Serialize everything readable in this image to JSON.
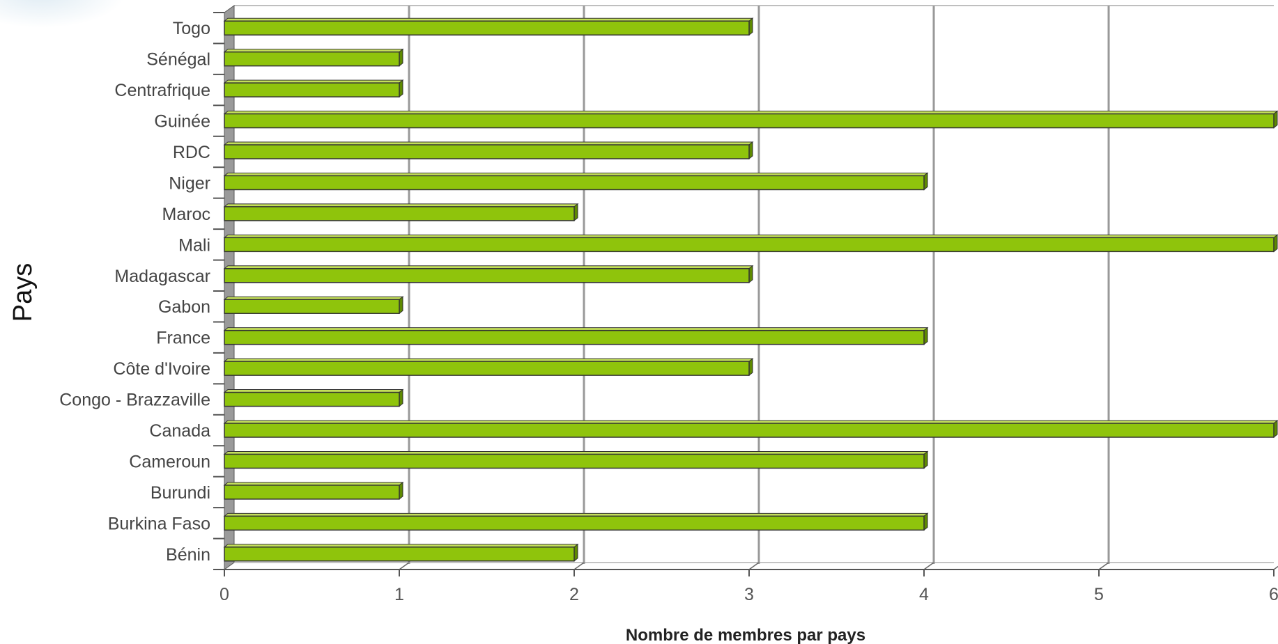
{
  "chart_data": {
    "type": "bar",
    "orientation": "horizontal",
    "categories": [
      "Togo",
      "Sénégal",
      "Centrafrique",
      "Guinée",
      "RDC",
      "Niger",
      "Maroc",
      "Mali",
      "Madagascar",
      "Gabon",
      "France",
      "Côte d'Ivoire",
      "Congo - Brazzaville",
      "Canada",
      "Cameroun",
      "Burundi",
      "Burkina Faso",
      "Bénin"
    ],
    "values": [
      3,
      1,
      1,
      6,
      3,
      4,
      2,
      6,
      3,
      1,
      4,
      3,
      1,
      6,
      4,
      1,
      4,
      2
    ],
    "xlabel": "Nombre de membres par pays",
    "ylabel": "Pays",
    "xlim": [
      0,
      6
    ],
    "xticks": [
      "0",
      "1",
      "2",
      "3",
      "4",
      "5",
      "6"
    ],
    "grid": true,
    "bar_color": "#8fc40c",
    "grid_color": "#999999"
  }
}
